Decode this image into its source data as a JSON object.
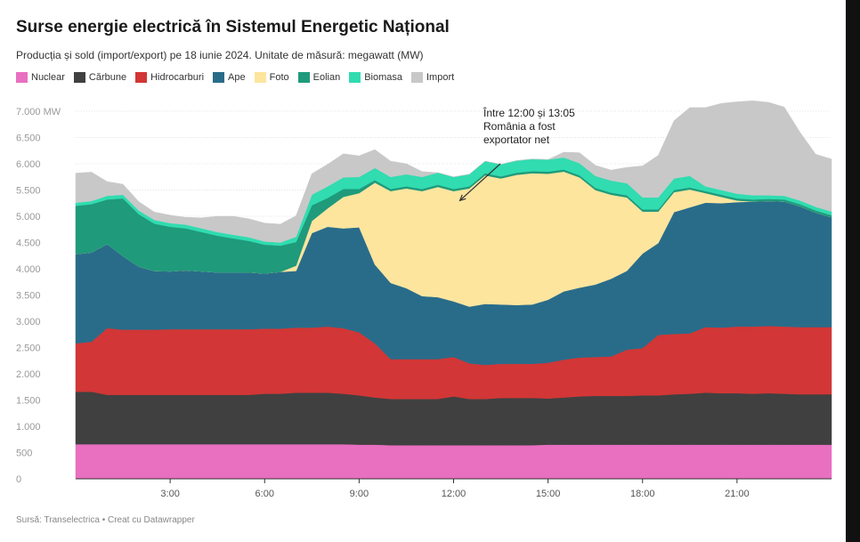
{
  "title": "Surse energie electrică în Sistemul Energetic Național",
  "subtitle": "Producția și sold (import/export) pe 18 iunie 2024. Unitate de măsură: megawatt (MW)",
  "source": "Sursă: Transelectrica • Creat cu Datawrapper",
  "annotation": {
    "lines": [
      "Între 12:00 și 13:05",
      "România a fost",
      "exportator net"
    ],
    "arrow_to": {
      "x": 12.2,
      "y": 5300
    }
  },
  "chart_data": {
    "type": "area",
    "stacked": true,
    "title": "Surse energie electrică în Sistemul Energetic Național",
    "x_unit": "hour",
    "x": [
      0,
      0.5,
      1,
      1.5,
      2,
      2.5,
      3,
      3.5,
      4,
      4.5,
      5,
      5.5,
      6,
      6.5,
      7,
      7.5,
      8,
      8.5,
      9,
      9.5,
      10,
      10.5,
      11,
      11.5,
      12,
      12.5,
      13,
      13.5,
      14,
      14.5,
      15,
      15.5,
      16,
      16.5,
      17,
      17.5,
      18,
      18.5,
      19,
      19.5,
      20,
      20.5,
      21,
      21.5,
      22,
      22.5,
      23,
      23.5,
      24
    ],
    "xticks": [
      {
        "value": 3,
        "label": "3:00"
      },
      {
        "value": 6,
        "label": "6:00"
      },
      {
        "value": 9,
        "label": "9:00"
      },
      {
        "value": 12,
        "label": "12:00"
      },
      {
        "value": 15,
        "label": "15:00"
      },
      {
        "value": 18,
        "label": "18:00"
      },
      {
        "value": 21,
        "label": "21:00"
      }
    ],
    "yticks": [
      {
        "value": 0,
        "label": "0"
      },
      {
        "value": 500,
        "label": "500"
      },
      {
        "value": 1000,
        "label": "1.000"
      },
      {
        "value": 1500,
        "label": "1.500"
      },
      {
        "value": 2000,
        "label": "2.000"
      },
      {
        "value": 2500,
        "label": "2.500"
      },
      {
        "value": 3000,
        "label": "3.000"
      },
      {
        "value": 3500,
        "label": "3.500"
      },
      {
        "value": 4000,
        "label": "4.000"
      },
      {
        "value": 4500,
        "label": "4.500"
      },
      {
        "value": 5000,
        "label": "5.000"
      },
      {
        "value": 5500,
        "label": "5.500"
      },
      {
        "value": 6000,
        "label": "6.000"
      },
      {
        "value": 6500,
        "label": "6.500"
      },
      {
        "value": 7000,
        "label": "7.000 MW"
      }
    ],
    "xlim": [
      0,
      24
    ],
    "ylim": [
      0,
      7000
    ],
    "grid": true,
    "legend_position": "top-left",
    "series": [
      {
        "name": "Nuclear",
        "color": "#e96fc1",
        "values": [
          660,
          660,
          660,
          660,
          660,
          660,
          660,
          660,
          660,
          660,
          660,
          660,
          660,
          660,
          660,
          660,
          660,
          660,
          650,
          650,
          640,
          640,
          640,
          640,
          640,
          640,
          640,
          640,
          640,
          640,
          650,
          650,
          650,
          650,
          650,
          650,
          650,
          650,
          650,
          650,
          650,
          650,
          650,
          650,
          650,
          650,
          650,
          650,
          650
        ]
      },
      {
        "name": "Cărbune",
        "color": "#404040",
        "values": [
          1000,
          1000,
          940,
          940,
          940,
          940,
          940,
          940,
          940,
          940,
          940,
          940,
          960,
          960,
          980,
          980,
          980,
          960,
          940,
          900,
          880,
          880,
          880,
          880,
          930,
          880,
          880,
          900,
          900,
          900,
          880,
          900,
          920,
          930,
          930,
          930,
          940,
          940,
          960,
          970,
          990,
          980,
          980,
          970,
          980,
          970,
          960,
          960,
          960
        ]
      },
      {
        "name": "Hidrocarburi",
        "color": "#d23636",
        "values": [
          920,
          950,
          1270,
          1240,
          1240,
          1240,
          1250,
          1250,
          1250,
          1250,
          1250,
          1250,
          1240,
          1240,
          1240,
          1240,
          1260,
          1250,
          1200,
          1030,
          760,
          760,
          760,
          760,
          750,
          680,
          650,
          650,
          650,
          650,
          680,
          720,
          740,
          740,
          750,
          880,
          900,
          1150,
          1150,
          1150,
          1250,
          1250,
          1270,
          1280,
          1280,
          1280,
          1280,
          1280,
          1280
        ]
      },
      {
        "name": "Ape",
        "color": "#296c8a",
        "values": [
          1700,
          1700,
          1600,
          1400,
          1200,
          1120,
          1100,
          1120,
          1100,
          1080,
          1080,
          1080,
          1050,
          1080,
          1080,
          1800,
          1900,
          1900,
          2000,
          1500,
          1450,
          1350,
          1200,
          1180,
          1060,
          1080,
          1160,
          1130,
          1120,
          1130,
          1200,
          1300,
          1330,
          1380,
          1480,
          1500,
          1800,
          1750,
          2320,
          2400,
          2370,
          2370,
          2370,
          2380,
          2380,
          2380,
          2300,
          2180,
          2090
        ]
      },
      {
        "name": "Foto",
        "color": "#fde59e",
        "values": [
          0,
          0,
          0,
          0,
          0,
          0,
          0,
          0,
          0,
          0,
          0,
          0,
          0,
          0,
          100,
          230,
          350,
          600,
          650,
          1560,
          1750,
          1900,
          2000,
          2100,
          2100,
          2250,
          2450,
          2400,
          2480,
          2500,
          2400,
          2280,
          2100,
          1800,
          1600,
          1400,
          800,
          600,
          380,
          340,
          180,
          120,
          30,
          0,
          0,
          0,
          0,
          0,
          0
        ]
      },
      {
        "name": "Eolian",
        "color": "#1f9a7b",
        "values": [
          920,
          920,
          850,
          1100,
          1000,
          900,
          850,
          800,
          750,
          700,
          650,
          600,
          550,
          500,
          450,
          300,
          200,
          150,
          80,
          50,
          40,
          40,
          40,
          40,
          40,
          40,
          40,
          40,
          40,
          40,
          40,
          40,
          40,
          40,
          40,
          40,
          40,
          40,
          40,
          40,
          40,
          40,
          40,
          40,
          40,
          40,
          40,
          40,
          40
        ]
      },
      {
        "name": "Biomasa",
        "color": "#30dcb0",
        "values": [
          60,
          60,
          70,
          70,
          70,
          70,
          70,
          70,
          70,
          70,
          70,
          70,
          60,
          60,
          100,
          200,
          220,
          220,
          230,
          230,
          230,
          230,
          230,
          230,
          230,
          230,
          230,
          230,
          230,
          230,
          230,
          230,
          230,
          230,
          230,
          230,
          230,
          230,
          220,
          220,
          90,
          90,
          90,
          80,
          70,
          70,
          70,
          70,
          70
        ]
      },
      {
        "name": "Import",
        "color": "#c8c8c8",
        "values": [
          560,
          550,
          270,
          200,
          170,
          150,
          150,
          140,
          200,
          300,
          350,
          350,
          350,
          350,
          400,
          400,
          420,
          450,
          400,
          350,
          300,
          200,
          100,
          0,
          0,
          0,
          0,
          0,
          0,
          0,
          0,
          100,
          200,
          200,
          200,
          300,
          600,
          800,
          1100,
          1300,
          1500,
          1650,
          1750,
          1800,
          1770,
          1690,
          1300,
          1000,
          1000
        ]
      }
    ]
  }
}
